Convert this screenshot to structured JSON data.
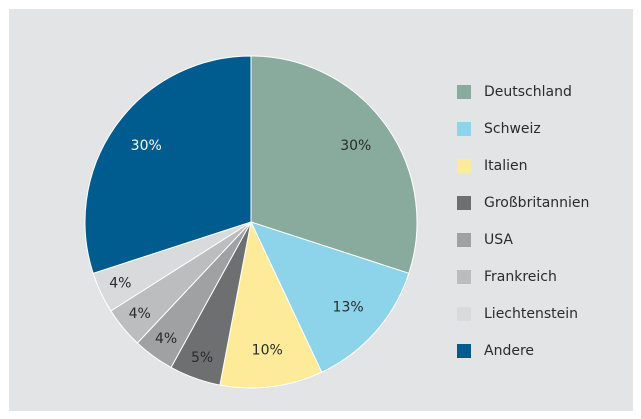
{
  "chart_data": {
    "type": "pie",
    "categories": [
      "Deutschland",
      "Schweiz",
      "Italien",
      "Großbritannien",
      "USA",
      "Frankreich",
      "Liechtenstein",
      "Andere"
    ],
    "values": [
      30,
      13,
      10,
      5,
      4,
      4,
      4,
      30
    ],
    "value_labels": [
      "30%",
      "13%",
      "10%",
      "5%",
      "4%",
      "4%",
      "4%",
      "30%"
    ],
    "colors": [
      "#88ab9e",
      "#8dd3ea",
      "#fdeb9a",
      "#6e6f71",
      "#a0a1a3",
      "#bcbdbf",
      "#d9dadb",
      "#005b8e"
    ],
    "legend": "right"
  }
}
